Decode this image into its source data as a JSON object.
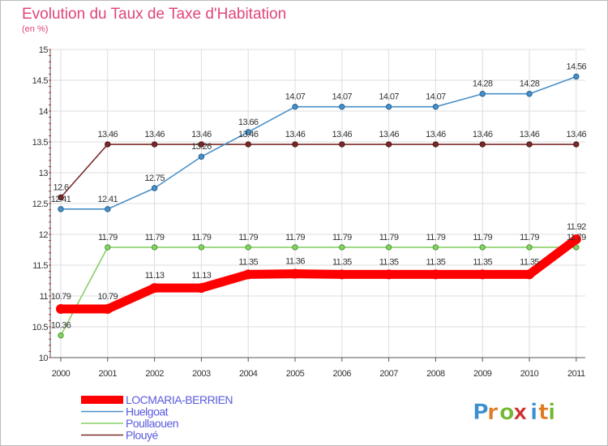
{
  "chart_data": {
    "type": "line",
    "title": "Evolution du Taux de Taxe d'Habitation",
    "subtitle": "(en %)",
    "xlabel": "",
    "ylabel": "",
    "ylim": [
      10,
      15
    ],
    "yticks": [
      "10",
      "10.5",
      "11",
      "11.5",
      "12",
      "12.5",
      "13",
      "13.5",
      "14",
      "14.5",
      "15"
    ],
    "ytick_values": [
      10,
      10.5,
      11,
      11.5,
      12,
      12.5,
      13,
      13.5,
      14,
      14.5,
      15
    ],
    "categories": [
      "2000",
      "2001",
      "2002",
      "2003",
      "2004",
      "2005",
      "2006",
      "2007",
      "2008",
      "2009",
      "2010",
      "2011"
    ],
    "grid": true,
    "legend_position": "bottom-left",
    "series": [
      {
        "name": "Plouyé",
        "color": "#7a2a2a",
        "values": [
          12.6,
          13.46,
          13.46,
          13.46,
          13.46,
          13.46,
          13.46,
          13.46,
          13.46,
          13.46,
          13.46,
          13.46
        ],
        "labels": [
          "12.6",
          "13.46",
          "13.46",
          "13.46",
          "13.46",
          "13.46",
          "13.46",
          "13.46",
          "13.46",
          "13.46",
          "13.46",
          "13.46"
        ]
      },
      {
        "name": "Huelgoat",
        "color": "#4a90c8",
        "values": [
          12.41,
          12.41,
          12.75,
          13.26,
          13.66,
          14.07,
          14.07,
          14.07,
          14.07,
          14.28,
          14.28,
          14.56
        ],
        "labels": [
          "12.41",
          "12.41",
          "12.75",
          "13.26",
          "13.66",
          "14.07",
          "14.07",
          "14.07",
          "14.07",
          "14.28",
          "14.28",
          "14.56"
        ]
      },
      {
        "name": "Poullaouen",
        "color": "#88d068",
        "values": [
          10.36,
          11.79,
          11.79,
          11.79,
          11.79,
          11.79,
          11.79,
          11.79,
          11.79,
          11.79,
          11.79,
          11.79
        ],
        "labels": [
          "10.36",
          "11.79",
          "11.79",
          "11.79",
          "11.79",
          "11.79",
          "11.79",
          "11.79",
          "11.79",
          "11.79",
          "11.79",
          "11.79"
        ]
      },
      {
        "name": "LOCMARIA-BERRIEN",
        "color": "#ff0000",
        "values": [
          10.79,
          10.79,
          11.13,
          11.13,
          11.35,
          11.36,
          11.35,
          11.35,
          11.35,
          11.35,
          11.35,
          11.92
        ],
        "labels": [
          "10.79",
          "10.79",
          "11.13",
          "11.13",
          "11.35",
          "11.36",
          "11.35",
          "11.35",
          "11.35",
          "11.35",
          "11.35",
          "11.92"
        ]
      }
    ],
    "legend": [
      "LOCMARIA-BERRIEN",
      "Huelgoat",
      "Poullaouen",
      "Plouyé"
    ]
  },
  "logo": {
    "letters": [
      "P",
      "r",
      "o",
      "x",
      "i",
      "t",
      "i"
    ],
    "colors": [
      "#3a8fd0",
      "#e07a20",
      "#70b830",
      "#d03030",
      "#3a8fd0",
      "#e07a20",
      "#70b830"
    ]
  }
}
